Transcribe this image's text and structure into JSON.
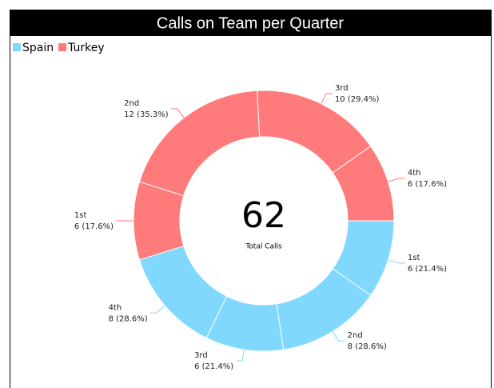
{
  "chart_data": {
    "type": "donut",
    "title": "Calls on Team per Quarter",
    "categories": [
      "1st",
      "2nd",
      "3rd",
      "4th"
    ],
    "series": [
      {
        "name": "Spain",
        "color": "#80d8ff",
        "values": [
          6,
          8,
          6,
          8
        ],
        "value_labels": [
          "6 (21.4%)",
          "8 (28.6%)",
          "6 (21.4%)",
          "8 (28.6%)"
        ]
      },
      {
        "name": "Turkey",
        "color": "#ff7b7b",
        "values": [
          6,
          12,
          10,
          6
        ],
        "value_labels": [
          "6 (17.6%)",
          "12 (35.3%)",
          "10 (29.4%)",
          "6 (17.6%)"
        ]
      }
    ],
    "center_value": 62,
    "center_label": "Total Calls",
    "legend": "top-left"
  }
}
